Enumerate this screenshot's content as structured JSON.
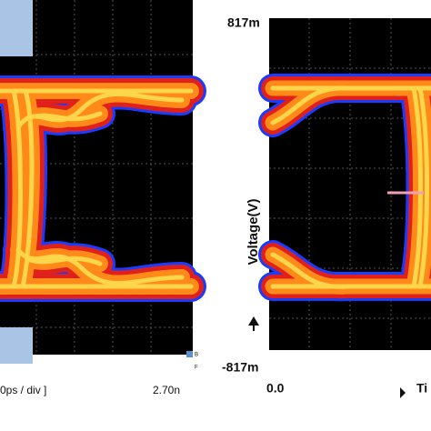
{
  "left_panel": {
    "scale_label": "0ps / div ]",
    "end_time": "2.70n",
    "legend": [
      "B",
      "F"
    ]
  },
  "right_panel": {
    "y_top": "817m",
    "y_bottom": "-817m",
    "x_start": "0.0",
    "y_axis_label": "Voltage(V)",
    "x_axis_label": "Ti"
  }
}
